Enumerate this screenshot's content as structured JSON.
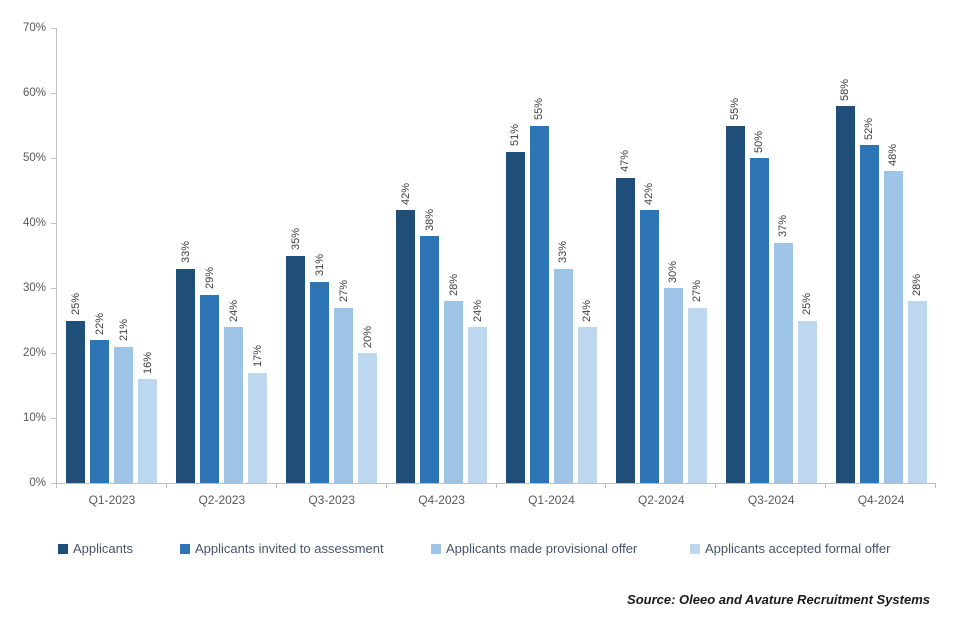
{
  "chart_data": {
    "type": "bar",
    "title": "",
    "categories": [
      "Q1-2023",
      "Q2-2023",
      "Q3-2023",
      "Q4-2023",
      "Q1-2024",
      "Q2-2024",
      "Q3-2024",
      "Q4-2024"
    ],
    "series": [
      {
        "name": "Applicants",
        "color": "#1F4E79",
        "values": [
          25,
          33,
          35,
          42,
          51,
          47,
          55,
          58
        ]
      },
      {
        "name": "Applicants invited to assessment",
        "color": "#2E75B6",
        "values": [
          22,
          29,
          31,
          38,
          55,
          42,
          50,
          52
        ]
      },
      {
        "name": "Applicants made provisional offer",
        "color": "#9DC3E6",
        "values": [
          21,
          24,
          27,
          28,
          33,
          30,
          37,
          48
        ]
      },
      {
        "name": "Applicants accepted formal offer",
        "color": "#BDD7EE",
        "values": [
          16,
          17,
          20,
          24,
          24,
          27,
          25,
          28
        ]
      }
    ],
    "data_labels": [
      [
        "25%",
        "33%",
        "35%",
        "42%",
        "51%",
        "47%",
        "55%",
        "58%"
      ],
      [
        "22%",
        "29%",
        "31%",
        "38%",
        "55%",
        "42%",
        "50%",
        "52%"
      ],
      [
        "21%",
        "24%",
        "27%",
        "28%",
        "33%",
        "30%",
        "37%",
        "48%"
      ],
      [
        "16%",
        "17%",
        "20%",
        "24%",
        "24%",
        "27%",
        "25%",
        "28%"
      ]
    ],
    "xlabel": "",
    "ylabel": "",
    "ylim": [
      0,
      70
    ],
    "ytick_values": [
      0,
      10,
      20,
      30,
      40,
      50,
      60,
      70
    ],
    "ytick_labels": [
      "0%",
      "10%",
      "20%",
      "30%",
      "40%",
      "50%",
      "60%",
      "70%"
    ],
    "grid": false,
    "legend_position": "bottom"
  },
  "legend": {
    "items": [
      {
        "label": "Applicants",
        "color": "#1F4E79"
      },
      {
        "label": "Applicants invited to assessment",
        "color": "#2E75B6"
      },
      {
        "label": "Applicants made provisional offer",
        "color": "#9DC3E6"
      },
      {
        "label": "Applicants accepted formal offer",
        "color": "#BDD7EE"
      }
    ]
  },
  "source": {
    "text": "Source: Oleeo and Avature Recruitment Systems"
  },
  "colors": {
    "axis": "#BFBFBF",
    "axis_label": "#595959",
    "data_label": "#404040",
    "legend_text": "#44546A",
    "background": "#FFFFFF"
  }
}
